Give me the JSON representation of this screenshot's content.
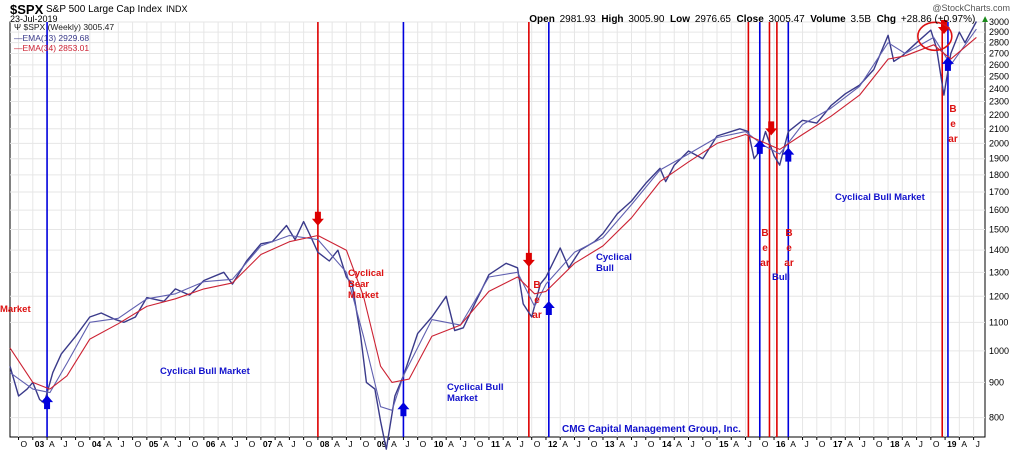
{
  "header": {
    "symbol": "$SPX",
    "description": "S&P 500 Large Cap Index",
    "exchange": "INDX",
    "date": "23-Jul-2019",
    "watermark": "@StockCharts.com",
    "open_label": "Open",
    "open": "2981.93",
    "high_label": "High",
    "high": "3005.90",
    "low_label": "Low",
    "low": "2976.65",
    "close_label": "Close",
    "close": "3005.47",
    "volume_label": "Volume",
    "volume": "3.5B",
    "chg_label": "Chg",
    "chg": "+28.86 (+0.97%)"
  },
  "legend": {
    "main": "$SPX (Weekly) 3005.47",
    "ema13": "EMA(13) 2929.68",
    "ema34": "EMA(34) 2853.01"
  },
  "annotations": {
    "left_cut": "Market",
    "bull_2003": "Cyclical Bull Market",
    "bear_2008": [
      "Cyclical",
      "Bear",
      "Market"
    ],
    "bull_2009": [
      "Cyclical Bull",
      "Market"
    ],
    "bear_2011": "Bear",
    "bull_2012": [
      "Cyclical",
      "Bull"
    ],
    "bear_2015": "Bear",
    "bear_2016": "Bear",
    "bull_2015": "Bull",
    "bull_2016": "Cyclical Bull Market",
    "bear_2018": "Bear",
    "footer": "CMG Capital Management Group, Inc."
  },
  "colors": {
    "price": "#3a3a8a",
    "ema34": "#cc2233",
    "bull_line": "#0000dd",
    "bear_line": "#dd0000",
    "grid": "#e6e6e6"
  },
  "chart_data": {
    "type": "line",
    "title": "$SPX S&P 500 Large Cap Index INDX",
    "scale": "log",
    "ylim": [
      750,
      3000
    ],
    "yticks": [
      800,
      900,
      1000,
      1100,
      1200,
      1300,
      1400,
      1500,
      1600,
      1700,
      1800,
      1900,
      2000,
      2100,
      2200,
      2300,
      2400,
      2500,
      2600,
      2700,
      2800,
      2900,
      3000
    ],
    "xlim": [
      2002.6,
      2019.7
    ],
    "x_tick_labels": [
      {
        "t": 2002.75,
        "label": "O"
      },
      {
        "t": 2003.0,
        "label": "03",
        "year": true
      },
      {
        "t": 2003.25,
        "label": "A"
      },
      {
        "t": 2003.5,
        "label": "J"
      },
      {
        "t": 2003.75,
        "label": "O"
      },
      {
        "t": 2004.0,
        "label": "04",
        "year": true
      },
      {
        "t": 2004.25,
        "label": "A"
      },
      {
        "t": 2004.5,
        "label": "J"
      },
      {
        "t": 2004.75,
        "label": "O"
      },
      {
        "t": 2005.0,
        "label": "05",
        "year": true
      },
      {
        "t": 2005.25,
        "label": "A"
      },
      {
        "t": 2005.5,
        "label": "J"
      },
      {
        "t": 2005.75,
        "label": "O"
      },
      {
        "t": 2006.0,
        "label": "06",
        "year": true
      },
      {
        "t": 2006.25,
        "label": "A"
      },
      {
        "t": 2006.5,
        "label": "J"
      },
      {
        "t": 2006.75,
        "label": "O"
      },
      {
        "t": 2007.0,
        "label": "07",
        "year": true
      },
      {
        "t": 2007.25,
        "label": "A"
      },
      {
        "t": 2007.5,
        "label": "J"
      },
      {
        "t": 2007.75,
        "label": "O"
      },
      {
        "t": 2008.0,
        "label": "08",
        "year": true
      },
      {
        "t": 2008.25,
        "label": "A"
      },
      {
        "t": 2008.5,
        "label": "J"
      },
      {
        "t": 2008.75,
        "label": "O"
      },
      {
        "t": 2009.0,
        "label": "09",
        "year": true
      },
      {
        "t": 2009.25,
        "label": "A"
      },
      {
        "t": 2009.5,
        "label": "J"
      },
      {
        "t": 2009.75,
        "label": "O"
      },
      {
        "t": 2010.0,
        "label": "10",
        "year": true
      },
      {
        "t": 2010.25,
        "label": "A"
      },
      {
        "t": 2010.5,
        "label": "J"
      },
      {
        "t": 2010.75,
        "label": "O"
      },
      {
        "t": 2011.0,
        "label": "11",
        "year": true
      },
      {
        "t": 2011.25,
        "label": "A"
      },
      {
        "t": 2011.5,
        "label": "J"
      },
      {
        "t": 2011.75,
        "label": "O"
      },
      {
        "t": 2012.0,
        "label": "12",
        "year": true
      },
      {
        "t": 2012.25,
        "label": "A"
      },
      {
        "t": 2012.5,
        "label": "J"
      },
      {
        "t": 2012.75,
        "label": "O"
      },
      {
        "t": 2013.0,
        "label": "13",
        "year": true
      },
      {
        "t": 2013.25,
        "label": "A"
      },
      {
        "t": 2013.5,
        "label": "J"
      },
      {
        "t": 2013.75,
        "label": "O"
      },
      {
        "t": 2014.0,
        "label": "14",
        "year": true
      },
      {
        "t": 2014.25,
        "label": "A"
      },
      {
        "t": 2014.5,
        "label": "J"
      },
      {
        "t": 2014.75,
        "label": "O"
      },
      {
        "t": 2015.0,
        "label": "15",
        "year": true
      },
      {
        "t": 2015.25,
        "label": "A"
      },
      {
        "t": 2015.5,
        "label": "J"
      },
      {
        "t": 2015.75,
        "label": "O"
      },
      {
        "t": 2016.0,
        "label": "16",
        "year": true
      },
      {
        "t": 2016.25,
        "label": "A"
      },
      {
        "t": 2016.5,
        "label": "J"
      },
      {
        "t": 2016.75,
        "label": "O"
      },
      {
        "t": 2017.0,
        "label": "17",
        "year": true
      },
      {
        "t": 2017.25,
        "label": "A"
      },
      {
        "t": 2017.5,
        "label": "J"
      },
      {
        "t": 2017.75,
        "label": "O"
      },
      {
        "t": 2018.0,
        "label": "18",
        "year": true
      },
      {
        "t": 2018.25,
        "label": "A"
      },
      {
        "t": 2018.5,
        "label": "J"
      },
      {
        "t": 2018.75,
        "label": "O"
      },
      {
        "t": 2019.0,
        "label": "19",
        "year": true
      },
      {
        "t": 2019.25,
        "label": "A"
      },
      {
        "t": 2019.5,
        "label": "J"
      }
    ],
    "series": [
      {
        "name": "$SPX (Weekly)",
        "color": "#3a3a8a",
        "x": [
          2002.6,
          2002.75,
          2002.9,
          2003.0,
          2003.12,
          2003.2,
          2003.35,
          2003.5,
          2003.75,
          2004.0,
          2004.2,
          2004.45,
          2004.6,
          2004.8,
          2005.0,
          2005.3,
          2005.5,
          2005.75,
          2006.0,
          2006.35,
          2006.5,
          2006.75,
          2007.0,
          2007.2,
          2007.45,
          2007.6,
          2007.75,
          2007.85,
          2008.0,
          2008.2,
          2008.35,
          2008.5,
          2008.6,
          2008.75,
          2008.85,
          2009.0,
          2009.1,
          2009.2,
          2009.35,
          2009.5,
          2009.75,
          2010.0,
          2010.25,
          2010.4,
          2010.55,
          2010.75,
          2011.0,
          2011.3,
          2011.5,
          2011.6,
          2011.75,
          2011.9,
          2012.0,
          2012.25,
          2012.4,
          2012.6,
          2012.85,
          2013.0,
          2013.25,
          2013.5,
          2013.75,
          2014.0,
          2014.1,
          2014.25,
          2014.5,
          2014.75,
          2015.0,
          2015.4,
          2015.55,
          2015.65,
          2015.75,
          2015.85,
          2016.0,
          2016.1,
          2016.25,
          2016.5,
          2016.75,
          2016.85,
          2017.0,
          2017.25,
          2017.5,
          2017.75,
          2018.0,
          2018.1,
          2018.25,
          2018.5,
          2018.75,
          2018.85,
          2018.98,
          2019.1,
          2019.25,
          2019.35,
          2019.45,
          2019.55
        ],
        "y": [
          950,
          860,
          880,
          900,
          850,
          840,
          930,
          990,
          1050,
          1120,
          1135,
          1110,
          1100,
          1120,
          1195,
          1180,
          1230,
          1205,
          1265,
          1300,
          1250,
          1350,
          1430,
          1440,
          1520,
          1450,
          1540,
          1480,
          1390,
          1350,
          1400,
          1280,
          1250,
          1050,
          900,
          880,
          790,
          720,
          860,
          920,
          1060,
          1120,
          1200,
          1070,
          1080,
          1170,
          1290,
          1340,
          1320,
          1170,
          1120,
          1250,
          1280,
          1410,
          1320,
          1400,
          1440,
          1480,
          1580,
          1650,
          1750,
          1840,
          1760,
          1860,
          1950,
          1900,
          2050,
          2100,
          2080,
          1900,
          1950,
          2080,
          1920,
          1860,
          2080,
          2160,
          2140,
          2190,
          2270,
          2360,
          2430,
          2560,
          2870,
          2630,
          2680,
          2800,
          2920,
          2750,
          2350,
          2700,
          2900,
          2800,
          2900,
          3005
        ]
      },
      {
        "name": "EMA(13)",
        "color": "#6060b0",
        "x": [
          2002.6,
          2003.0,
          2003.3,
          2003.6,
          2004.0,
          2004.5,
          2005.0,
          2005.5,
          2006.0,
          2006.5,
          2007.0,
          2007.5,
          2008.0,
          2008.5,
          2008.8,
          2009.1,
          2009.3,
          2009.5,
          2010.0,
          2010.5,
          2011.0,
          2011.5,
          2011.8,
          2012.0,
          2012.5,
          2013.0,
          2013.5,
          2014.0,
          2014.5,
          2015.0,
          2015.5,
          2015.8,
          2016.1,
          2016.5,
          2017.0,
          2017.5,
          2018.0,
          2018.3,
          2018.8,
          2019.1,
          2019.55
        ],
        "y": [
          930,
          880,
          870,
          960,
          1100,
          1115,
          1190,
          1210,
          1260,
          1270,
          1420,
          1470,
          1450,
          1300,
          1050,
          830,
          820,
          920,
          1110,
          1090,
          1280,
          1300,
          1160,
          1250,
          1390,
          1460,
          1630,
          1830,
          1930,
          2040,
          2080,
          1990,
          1930,
          2130,
          2250,
          2420,
          2800,
          2700,
          2850,
          2600,
          2930
        ]
      },
      {
        "name": "EMA(34)",
        "color": "#cc2233",
        "x": [
          2002.6,
          2003.0,
          2003.3,
          2003.6,
          2004.0,
          2004.5,
          2005.0,
          2005.5,
          2006.0,
          2006.5,
          2007.0,
          2007.5,
          2008.0,
          2008.5,
          2008.8,
          2009.1,
          2009.3,
          2009.6,
          2010.0,
          2010.5,
          2011.0,
          2011.5,
          2011.8,
          2012.0,
          2012.5,
          2013.0,
          2013.5,
          2014.0,
          2014.5,
          2015.0,
          2015.5,
          2015.8,
          2016.1,
          2016.5,
          2017.0,
          2017.5,
          2018.0,
          2018.3,
          2018.8,
          2019.1,
          2019.55
        ],
        "y": [
          1010,
          900,
          880,
          920,
          1040,
          1095,
          1160,
          1190,
          1230,
          1255,
          1380,
          1440,
          1470,
          1400,
          1200,
          950,
          900,
          910,
          1050,
          1090,
          1220,
          1280,
          1210,
          1220,
          1340,
          1420,
          1560,
          1760,
          1880,
          2000,
          2060,
          2010,
          1960,
          2060,
          2190,
          2350,
          2650,
          2680,
          2780,
          2650,
          2850
        ]
      }
    ],
    "event_lines": [
      {
        "t": 2003.25,
        "kind": "bull"
      },
      {
        "t": 2008.0,
        "kind": "bear"
      },
      {
        "t": 2009.5,
        "kind": "bull"
      },
      {
        "t": 2011.7,
        "kind": "bear"
      },
      {
        "t": 2012.05,
        "kind": "bull"
      },
      {
        "t": 2015.55,
        "kind": "bear"
      },
      {
        "t": 2015.75,
        "kind": "bull"
      },
      {
        "t": 2015.92,
        "kind": "bear"
      },
      {
        "t": 2016.05,
        "kind": "bear"
      },
      {
        "t": 2016.25,
        "kind": "bull"
      },
      {
        "t": 2018.95,
        "kind": "bear"
      },
      {
        "t": 2019.05,
        "kind": "bull"
      }
    ],
    "arrows": [
      {
        "t": 2003.25,
        "y": 840,
        "dir": "up",
        "kind": "bull"
      },
      {
        "t": 2008.0,
        "y": 1560,
        "dir": "down",
        "kind": "bear"
      },
      {
        "t": 2009.5,
        "y": 820,
        "dir": "up",
        "kind": "bull"
      },
      {
        "t": 2011.7,
        "y": 1360,
        "dir": "down",
        "kind": "bear"
      },
      {
        "t": 2012.05,
        "y": 1150,
        "dir": "up",
        "kind": "bull"
      },
      {
        "t": 2015.75,
        "y": 1970,
        "dir": "up",
        "kind": "bull"
      },
      {
        "t": 2015.95,
        "y": 2110,
        "dir": "down",
        "kind": "bear"
      },
      {
        "t": 2016.25,
        "y": 1920,
        "dir": "up",
        "kind": "bull"
      },
      {
        "t": 2018.98,
        "y": 2960,
        "dir": "down",
        "kind": "bear"
      },
      {
        "t": 2019.05,
        "y": 2600,
        "dir": "up",
        "kind": "bull"
      }
    ],
    "highlight_circle": {
      "t": 2018.82,
      "y": 2860
    }
  }
}
